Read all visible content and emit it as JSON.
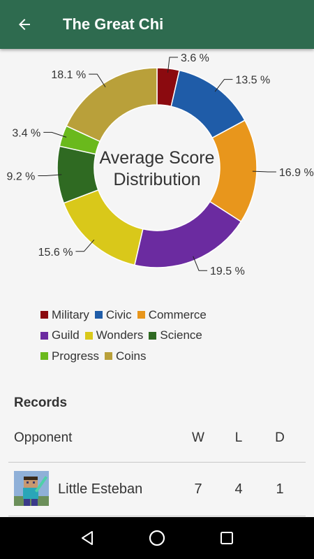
{
  "appbar": {
    "title": "The Great Chi"
  },
  "chart_data": {
    "type": "pie",
    "title": "Average Score Distribution",
    "title_lines": [
      "Average Score",
      "Distribution"
    ],
    "donut": true,
    "categories": [
      "Military",
      "Civic",
      "Commerce",
      "Guild",
      "Wonders",
      "Science",
      "Progress",
      "Coins"
    ],
    "values": [
      3.6,
      13.5,
      16.9,
      19.5,
      15.6,
      9.2,
      3.4,
      18.1
    ],
    "labels": [
      "3.6 %",
      "13.5 %",
      "16.9 %",
      "19.5 %",
      "15.6 %",
      "9.2 %",
      "3.4 %",
      "18.1 %"
    ],
    "colors": [
      "#8b0a0f",
      "#1f5ca8",
      "#e8961c",
      "#6b2ba0",
      "#d9c81a",
      "#2f6a22",
      "#6ab91c",
      "#b9a03a"
    ],
    "legend_position": "bottom-left"
  },
  "records": {
    "title": "Records",
    "columns": {
      "opponent": "Opponent",
      "w": "W",
      "l": "L",
      "d": "D"
    },
    "rows": [
      {
        "name": "Little Esteban",
        "w": "7",
        "l": "4",
        "d": "1"
      }
    ]
  },
  "colors": {
    "appbar": "#2e6b4f",
    "navbar": "#000000"
  },
  "icons": {
    "back": "arrow-left-icon",
    "nav_back": "triangle-back-icon",
    "nav_home": "circle-home-icon",
    "nav_recents": "square-recents-icon"
  }
}
